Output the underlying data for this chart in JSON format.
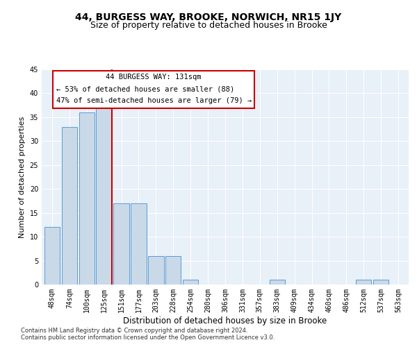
{
  "title": "44, BURGESS WAY, BROOKE, NORWICH, NR15 1JY",
  "subtitle": "Size of property relative to detached houses in Brooke",
  "xlabel": "Distribution of detached houses by size in Brooke",
  "ylabel": "Number of detached properties",
  "bins": [
    "48sqm",
    "74sqm",
    "100sqm",
    "125sqm",
    "151sqm",
    "177sqm",
    "203sqm",
    "228sqm",
    "254sqm",
    "280sqm",
    "306sqm",
    "331sqm",
    "357sqm",
    "383sqm",
    "409sqm",
    "434sqm",
    "460sqm",
    "486sqm",
    "512sqm",
    "537sqm",
    "563sqm"
  ],
  "values": [
    12,
    33,
    36,
    37,
    17,
    17,
    6,
    6,
    1,
    0,
    0,
    0,
    0,
    1,
    0,
    0,
    0,
    0,
    1,
    1,
    0
  ],
  "bar_color": "#c9d9e8",
  "bar_edgecolor": "#5b9bd5",
  "vline_color": "#cc0000",
  "annotation_box_color": "#cc0000",
  "annotation_text_line1": "44 BURGESS WAY: 131sqm",
  "annotation_text_line2": "← 53% of detached houses are smaller (88)",
  "annotation_text_line3": "47% of semi-detached houses are larger (79) →",
  "ylim": [
    0,
    45
  ],
  "yticks": [
    0,
    5,
    10,
    15,
    20,
    25,
    30,
    35,
    40,
    45
  ],
  "footer1": "Contains HM Land Registry data © Crown copyright and database right 2024.",
  "footer2": "Contains public sector information licensed under the Open Government Licence v3.0.",
  "background_color": "#e8f0f8",
  "title_fontsize": 10,
  "subtitle_fontsize": 9,
  "tick_fontsize": 7,
  "ylabel_fontsize": 8,
  "xlabel_fontsize": 8.5,
  "footer_fontsize": 6,
  "annotation_fontsize": 7.5
}
